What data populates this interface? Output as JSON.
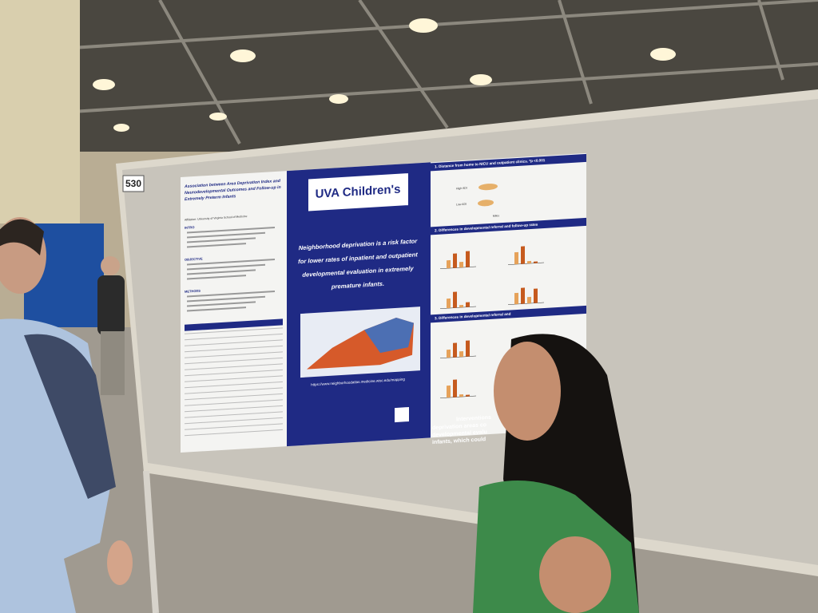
{
  "booth_number": "530",
  "poster": {
    "title_lines": [
      "Association between Area Deprivation Index and",
      "Neurodevelopmental Outcomes and Follow-up in",
      "Extremely Preterm Infants"
    ],
    "affiliation": "Affiliation: University of Virginia School of Medicine",
    "left_headings": [
      "INTRO",
      "OBJECTIVE",
      "METHODS"
    ],
    "logo": "UVA Children's",
    "key_message_lines": [
      "Neighborhood deprivation is a risk factor",
      "for lower rates of inpatient and outpatient",
      "developmental evaluation in extremely",
      "premature infants."
    ],
    "map_url": "https://www.neighborhoodatlas.medicine.wisc.edu/mapping",
    "sections": [
      "1. Distance from home to NICU and outpatient clinics. *p <0.001",
      "2. Differences in developmental referral and follow-up rates",
      "3. Differences in developmental referral and"
    ],
    "chart_labels": [
      "High ADI",
      "Low ADI",
      "Miles"
    ],
    "conclusion_lines": [
      "Interventions",
      "deprivation areas co",
      "developmental evalu",
      "infants, which could"
    ]
  }
}
